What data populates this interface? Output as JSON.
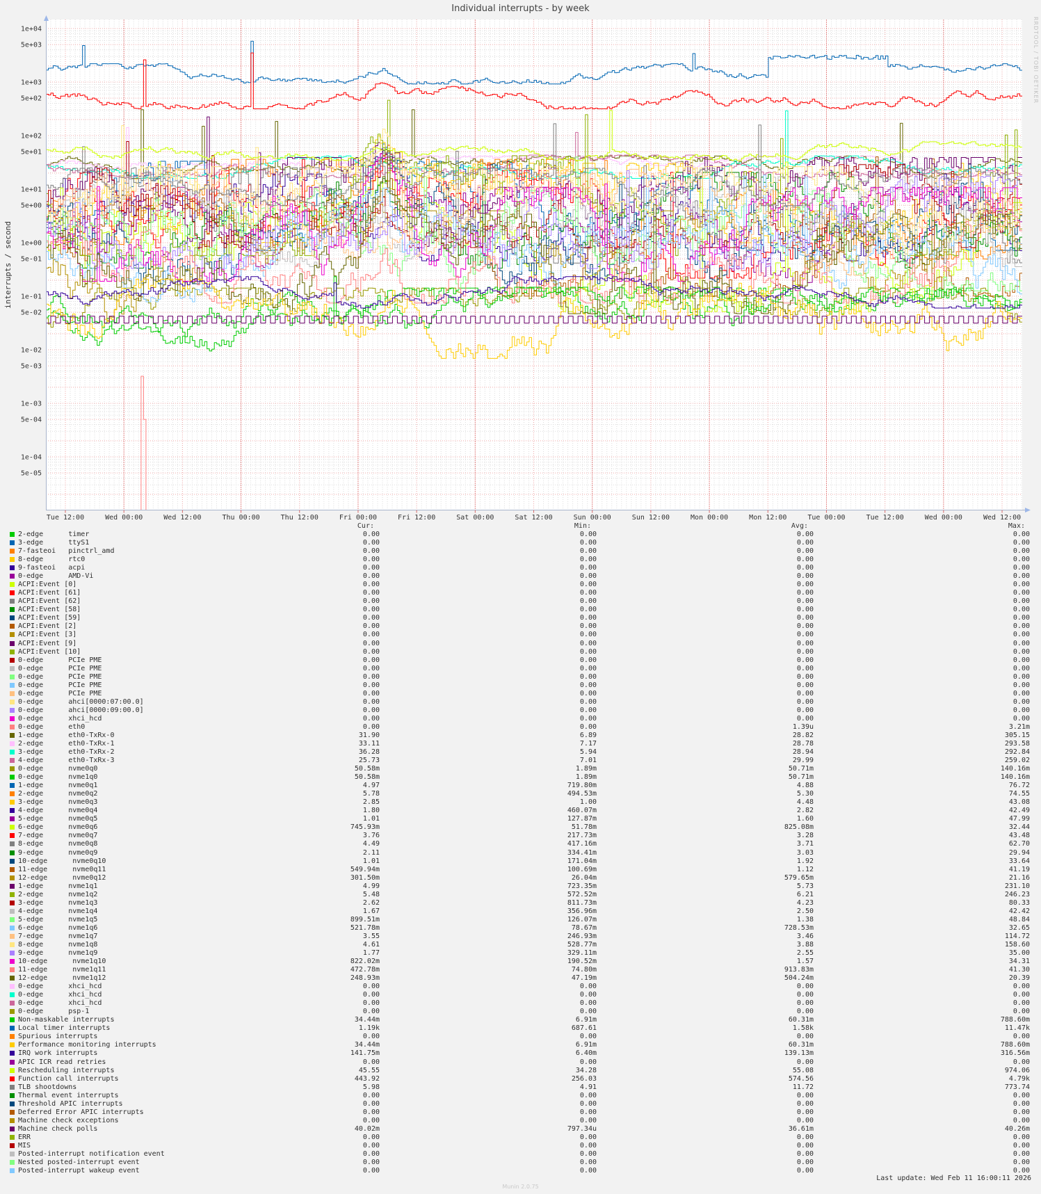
{
  "title": "Individual interrupts - by week",
  "watermark": "RRDTOOL / TOBI OETIKER",
  "footer": {
    "last_update": "Last update: Wed Feb 11 16:00:11 2026",
    "version": "Munin 2.0.75"
  },
  "chart_data": {
    "type": "line",
    "title": "Individual interrupts - by week",
    "ylabel": "interrupts / second",
    "xlabel": "",
    "yscale": "log",
    "ylim": [
      1e-05,
      14000
    ],
    "grid": "on",
    "legend_position": "bottom-table",
    "y_tick_labels": [
      "1e+04",
      "5e+03",
      "1e+03",
      "5e+02",
      "1e+02",
      "5e+01",
      "1e+01",
      "5e+00",
      "1e+00",
      "5e-01",
      "1e-01",
      "5e-02",
      "1e-02",
      "5e-03",
      "1e-03",
      "5e-04",
      "1e-04",
      "5e-05"
    ],
    "x_tick_labels": [
      "Tue 12:00",
      "Wed 00:00",
      "Wed 12:00",
      "Thu 00:00",
      "Thu 12:00",
      "Fri 00:00",
      "Fri 12:00",
      "Sat 00:00",
      "Sat 12:00",
      "Sun 00:00",
      "Sun 12:00",
      "Mon 00:00",
      "Mon 12:00",
      "Tue 00:00",
      "Tue 12:00",
      "Wed 00:00",
      "Wed 12:00"
    ],
    "legend_columns": [
      "Cur:",
      "Min:",
      "Avg:",
      "Max:"
    ],
    "series": [
      {
        "label": "2-edge      timer",
        "color": "#00CC00",
        "cur": "0.00",
        "min": "0.00",
        "avg": "0.00",
        "max": "0.00"
      },
      {
        "label": "3-edge      ttyS1",
        "color": "#0066B3",
        "cur": "0.00",
        "min": "0.00",
        "avg": "0.00",
        "max": "0.00"
      },
      {
        "label": "7-fasteoi   pinctrl_amd",
        "color": "#FF8000",
        "cur": "0.00",
        "min": "0.00",
        "avg": "0.00",
        "max": "0.00"
      },
      {
        "label": "8-edge      rtc0",
        "color": "#FFCC00",
        "cur": "0.00",
        "min": "0.00",
        "avg": "0.00",
        "max": "0.00"
      },
      {
        "label": "9-fasteoi   acpi",
        "color": "#330099",
        "cur": "0.00",
        "min": "0.00",
        "avg": "0.00",
        "max": "0.00"
      },
      {
        "label": "0-edge      AMD-Vi",
        "color": "#990099",
        "cur": "0.00",
        "min": "0.00",
        "avg": "0.00",
        "max": "0.00"
      },
      {
        "label": "ACPI:Event [0]",
        "color": "#CCFF00",
        "cur": "0.00",
        "min": "0.00",
        "avg": "0.00",
        "max": "0.00"
      },
      {
        "label": "ACPI:Event [61]",
        "color": "#FF0000",
        "cur": "0.00",
        "min": "0.00",
        "avg": "0.00",
        "max": "0.00"
      },
      {
        "label": "ACPI:Event [62]",
        "color": "#808080",
        "cur": "0.00",
        "min": "0.00",
        "avg": "0.00",
        "max": "0.00"
      },
      {
        "label": "ACPI:Event [58]",
        "color": "#008F00",
        "cur": "0.00",
        "min": "0.00",
        "avg": "0.00",
        "max": "0.00"
      },
      {
        "label": "ACPI:Event [59]",
        "color": "#00487D",
        "cur": "0.00",
        "min": "0.00",
        "avg": "0.00",
        "max": "0.00"
      },
      {
        "label": "ACPI:Event [2]",
        "color": "#B35A00",
        "cur": "0.00",
        "min": "0.00",
        "avg": "0.00",
        "max": "0.00"
      },
      {
        "label": "ACPI:Event [3]",
        "color": "#B38F00",
        "cur": "0.00",
        "min": "0.00",
        "avg": "0.00",
        "max": "0.00"
      },
      {
        "label": "ACPI:Event [9]",
        "color": "#6B006B",
        "cur": "0.00",
        "min": "0.00",
        "avg": "0.00",
        "max": "0.00"
      },
      {
        "label": "ACPI:Event [10]",
        "color": "#8FB300",
        "cur": "0.00",
        "min": "0.00",
        "avg": "0.00",
        "max": "0.00"
      },
      {
        "label": "0-edge      PCIe PME",
        "color": "#B30000",
        "cur": "0.00",
        "min": "0.00",
        "avg": "0.00",
        "max": "0.00"
      },
      {
        "label": "0-edge      PCIe PME",
        "color": "#BEBEBE",
        "cur": "0.00",
        "min": "0.00",
        "avg": "0.00",
        "max": "0.00"
      },
      {
        "label": "0-edge      PCIe PME",
        "color": "#80FF80",
        "cur": "0.00",
        "min": "0.00",
        "avg": "0.00",
        "max": "0.00"
      },
      {
        "label": "0-edge      PCIe PME",
        "color": "#80C9FF",
        "cur": "0.00",
        "min": "0.00",
        "avg": "0.00",
        "max": "0.00"
      },
      {
        "label": "0-edge      PCIe PME",
        "color": "#FFC080",
        "cur": "0.00",
        "min": "0.00",
        "avg": "0.00",
        "max": "0.00"
      },
      {
        "label": "0-edge      ahci[0000:07:00.0]",
        "color": "#FFE680",
        "cur": "0.00",
        "min": "0.00",
        "avg": "0.00",
        "max": "0.00"
      },
      {
        "label": "0-edge      ahci[0000:09:00.0]",
        "color": "#AA80FF",
        "cur": "0.00",
        "min": "0.00",
        "avg": "0.00",
        "max": "0.00"
      },
      {
        "label": "0-edge      xhci_hcd",
        "color": "#EE00CC",
        "cur": "0.00",
        "min": "0.00",
        "avg": "0.00",
        "max": "0.00"
      },
      {
        "label": "0-edge      eth0",
        "color": "#FF8080",
        "cur": "0.00",
        "min": "0.00",
        "avg": "1.39u",
        "max": "3.21m",
        "shape": "spike"
      },
      {
        "label": "1-edge      eth0-TxRx-0",
        "color": "#666600",
        "cur": "31.90",
        "min": "6.89",
        "avg": "28.82",
        "max": "305.15"
      },
      {
        "label": "2-edge      eth0-TxRx-1",
        "color": "#FFBFFF",
        "cur": "33.11",
        "min": "7.17",
        "avg": "28.78",
        "max": "293.58"
      },
      {
        "label": "3-edge      eth0-TxRx-2",
        "color": "#00FFCC",
        "cur": "36.28",
        "min": "5.94",
        "avg": "28.94",
        "max": "292.84"
      },
      {
        "label": "4-edge      eth0-TxRx-3",
        "color": "#CC6699",
        "cur": "25.73",
        "min": "7.01",
        "avg": "29.99",
        "max": "259.02"
      },
      {
        "label": "0-edge      nvme0q0",
        "color": "#999900",
        "cur": "50.58m",
        "min": "1.89m",
        "avg": "50.71m",
        "max": "140.16m"
      },
      {
        "label": "0-edge      nvme1q0",
        "color": "#00CC00",
        "cur": "50.58m",
        "min": "1.89m",
        "avg": "50.71m",
        "max": "140.16m"
      },
      {
        "label": "1-edge      nvme0q1",
        "color": "#0066B3",
        "cur": "4.97",
        "min": "719.80m",
        "avg": "4.88",
        "max": "76.72"
      },
      {
        "label": "2-edge      nvme0q2",
        "color": "#FF8000",
        "cur": "5.78",
        "min": "494.53m",
        "avg": "5.30",
        "max": "74.55"
      },
      {
        "label": "3-edge      nvme0q3",
        "color": "#FFCC00",
        "cur": "2.85",
        "min": "1.00",
        "avg": "4.48",
        "max": "43.08"
      },
      {
        "label": "4-edge      nvme0q4",
        "color": "#330099",
        "cur": "1.80",
        "min": "460.07m",
        "avg": "2.82",
        "max": "42.49"
      },
      {
        "label": "5-edge      nvme0q5",
        "color": "#990099",
        "cur": "1.01",
        "min": "127.87m",
        "avg": "1.60",
        "max": "47.99"
      },
      {
        "label": "6-edge      nvme0q6",
        "color": "#CCFF00",
        "cur": "745.93m",
        "min": "51.78m",
        "avg": "825.08m",
        "max": "32.44"
      },
      {
        "label": "7-edge      nvme0q7",
        "color": "#FF0000",
        "cur": "3.76",
        "min": "217.73m",
        "avg": "3.28",
        "max": "43.48"
      },
      {
        "label": "8-edge      nvme0q8",
        "color": "#808080",
        "cur": "4.49",
        "min": "417.16m",
        "avg": "3.71",
        "max": "62.70"
      },
      {
        "label": "9-edge      nvme0q9",
        "color": "#008F00",
        "cur": "2.11",
        "min": "334.41m",
        "avg": "3.03",
        "max": "29.94"
      },
      {
        "label": "10-edge      nvme0q10",
        "color": "#00487D",
        "cur": "1.01",
        "min": "171.04m",
        "avg": "1.92",
        "max": "33.64"
      },
      {
        "label": "11-edge      nvme0q11",
        "color": "#B35A00",
        "cur": "549.94m",
        "min": "100.69m",
        "avg": "1.12",
        "max": "41.19"
      },
      {
        "label": "12-edge      nvme0q12",
        "color": "#B38F00",
        "cur": "301.50m",
        "min": "26.04m",
        "avg": "579.65m",
        "max": "21.16"
      },
      {
        "label": "1-edge      nvme1q1",
        "color": "#6B006B",
        "cur": "4.99",
        "min": "723.35m",
        "avg": "5.73",
        "max": "231.10"
      },
      {
        "label": "2-edge      nvme1q2",
        "color": "#8FB300",
        "cur": "5.48",
        "min": "572.52m",
        "avg": "6.21",
        "max": "246.23"
      },
      {
        "label": "3-edge      nvme1q3",
        "color": "#B30000",
        "cur": "2.62",
        "min": "811.73m",
        "avg": "4.23",
        "max": "80.33"
      },
      {
        "label": "4-edge      nvme1q4",
        "color": "#BEBEBE",
        "cur": "1.67",
        "min": "356.96m",
        "avg": "2.50",
        "max": "42.42"
      },
      {
        "label": "5-edge      nvme1q5",
        "color": "#80FF80",
        "cur": "899.51m",
        "min": "126.07m",
        "avg": "1.38",
        "max": "48.84"
      },
      {
        "label": "6-edge      nvme1q6",
        "color": "#80C9FF",
        "cur": "521.78m",
        "min": "78.67m",
        "avg": "728.53m",
        "max": "32.65"
      },
      {
        "label": "7-edge      nvme1q7",
        "color": "#FFC080",
        "cur": "3.55",
        "min": "246.93m",
        "avg": "3.46",
        "max": "114.72"
      },
      {
        "label": "8-edge      nvme1q8",
        "color": "#FFE680",
        "cur": "4.61",
        "min": "528.77m",
        "avg": "3.88",
        "max": "158.60"
      },
      {
        "label": "9-edge      nvme1q9",
        "color": "#AA80FF",
        "cur": "1.77",
        "min": "329.11m",
        "avg": "2.55",
        "max": "35.00"
      },
      {
        "label": "10-edge      nvme1q10",
        "color": "#EE00CC",
        "cur": "822.02m",
        "min": "190.52m",
        "avg": "1.57",
        "max": "34.31"
      },
      {
        "label": "11-edge      nvme1q11",
        "color": "#FF8080",
        "cur": "472.78m",
        "min": "74.80m",
        "avg": "913.83m",
        "max": "41.30"
      },
      {
        "label": "12-edge      nvme1q12",
        "color": "#666600",
        "cur": "248.93m",
        "min": "47.19m",
        "avg": "504.24m",
        "max": "20.39"
      },
      {
        "label": "0-edge      xhci_hcd",
        "color": "#FFBFFF",
        "cur": "0.00",
        "min": "0.00",
        "avg": "0.00",
        "max": "0.00"
      },
      {
        "label": "0-edge      xhci_hcd",
        "color": "#00FFCC",
        "cur": "0.00",
        "min": "0.00",
        "avg": "0.00",
        "max": "0.00"
      },
      {
        "label": "0-edge      xhci_hcd",
        "color": "#CC6699",
        "cur": "0.00",
        "min": "0.00",
        "avg": "0.00",
        "max": "0.00"
      },
      {
        "label": "0-edge      psp-1",
        "color": "#999900",
        "cur": "0.00",
        "min": "0.00",
        "avg": "0.00",
        "max": "0.00"
      },
      {
        "label": "Non-maskable interrupts",
        "color": "#00CC00",
        "cur": "34.44m",
        "min": "6.91m",
        "avg": "60.31m",
        "max": "788.60m"
      },
      {
        "label": "Local timer interrupts",
        "color": "#0066B3",
        "cur": "1.19k",
        "min": "687.61",
        "avg": "1.58k",
        "max": "11.47k",
        "shape": "plateau"
      },
      {
        "label": "Spurious interrupts",
        "color": "#FF8000",
        "cur": "0.00",
        "min": "0.00",
        "avg": "0.00",
        "max": "0.00"
      },
      {
        "label": "Performance monitoring interrupts",
        "color": "#FFCC00",
        "cur": "34.44m",
        "min": "6.91m",
        "avg": "60.31m",
        "max": "788.60m"
      },
      {
        "label": "IRQ work interrupts",
        "color": "#330099",
        "cur": "141.75m",
        "min": "6.40m",
        "avg": "139.13m",
        "max": "316.56m"
      },
      {
        "label": "APIC ICR read retries",
        "color": "#990099",
        "cur": "0.00",
        "min": "0.00",
        "avg": "0.00",
        "max": "0.00"
      },
      {
        "label": "Rescheduling interrupts",
        "color": "#CCFF00",
        "cur": "45.55",
        "min": "34.28",
        "avg": "55.08",
        "max": "974.06"
      },
      {
        "label": "Function call interrupts",
        "color": "#FF0000",
        "cur": "443.92",
        "min": "256.03",
        "avg": "574.56",
        "max": "4.79k"
      },
      {
        "label": "TLB shootdowns",
        "color": "#808080",
        "cur": "5.98",
        "min": "4.91",
        "avg": "11.72",
        "max": "773.74"
      },
      {
        "label": "Thermal event interrupts",
        "color": "#008F00",
        "cur": "0.00",
        "min": "0.00",
        "avg": "0.00",
        "max": "0.00"
      },
      {
        "label": "Threshold APIC interrupts",
        "color": "#00487D",
        "cur": "0.00",
        "min": "0.00",
        "avg": "0.00",
        "max": "0.00"
      },
      {
        "label": "Deferred Error APIC interrupts",
        "color": "#B35A00",
        "cur": "0.00",
        "min": "0.00",
        "avg": "0.00",
        "max": "0.00"
      },
      {
        "label": "Machine check exceptions",
        "color": "#B38F00",
        "cur": "0.00",
        "min": "0.00",
        "avg": "0.00",
        "max": "0.00"
      },
      {
        "label": "Machine check polls",
        "color": "#6B006B",
        "cur": "40.02m",
        "min": "797.34u",
        "avg": "36.61m",
        "max": "40.26m",
        "shape": "square"
      },
      {
        "label": "ERR",
        "color": "#8FB300",
        "cur": "0.00",
        "min": "0.00",
        "avg": "0.00",
        "max": "0.00"
      },
      {
        "label": "MIS",
        "color": "#B30000",
        "cur": "0.00",
        "min": "0.00",
        "avg": "0.00",
        "max": "0.00"
      },
      {
        "label": "Posted-interrupt notification event",
        "color": "#BEBEBE",
        "cur": "0.00",
        "min": "0.00",
        "avg": "0.00",
        "max": "0.00"
      },
      {
        "label": "Nested posted-interrupt event",
        "color": "#80FF80",
        "cur": "0.00",
        "min": "0.00",
        "avg": "0.00",
        "max": "0.00"
      },
      {
        "label": "Posted-interrupt wakeup event",
        "color": "#80C9FF",
        "cur": "0.00",
        "min": "0.00",
        "avg": "0.00",
        "max": "0.00"
      }
    ]
  }
}
